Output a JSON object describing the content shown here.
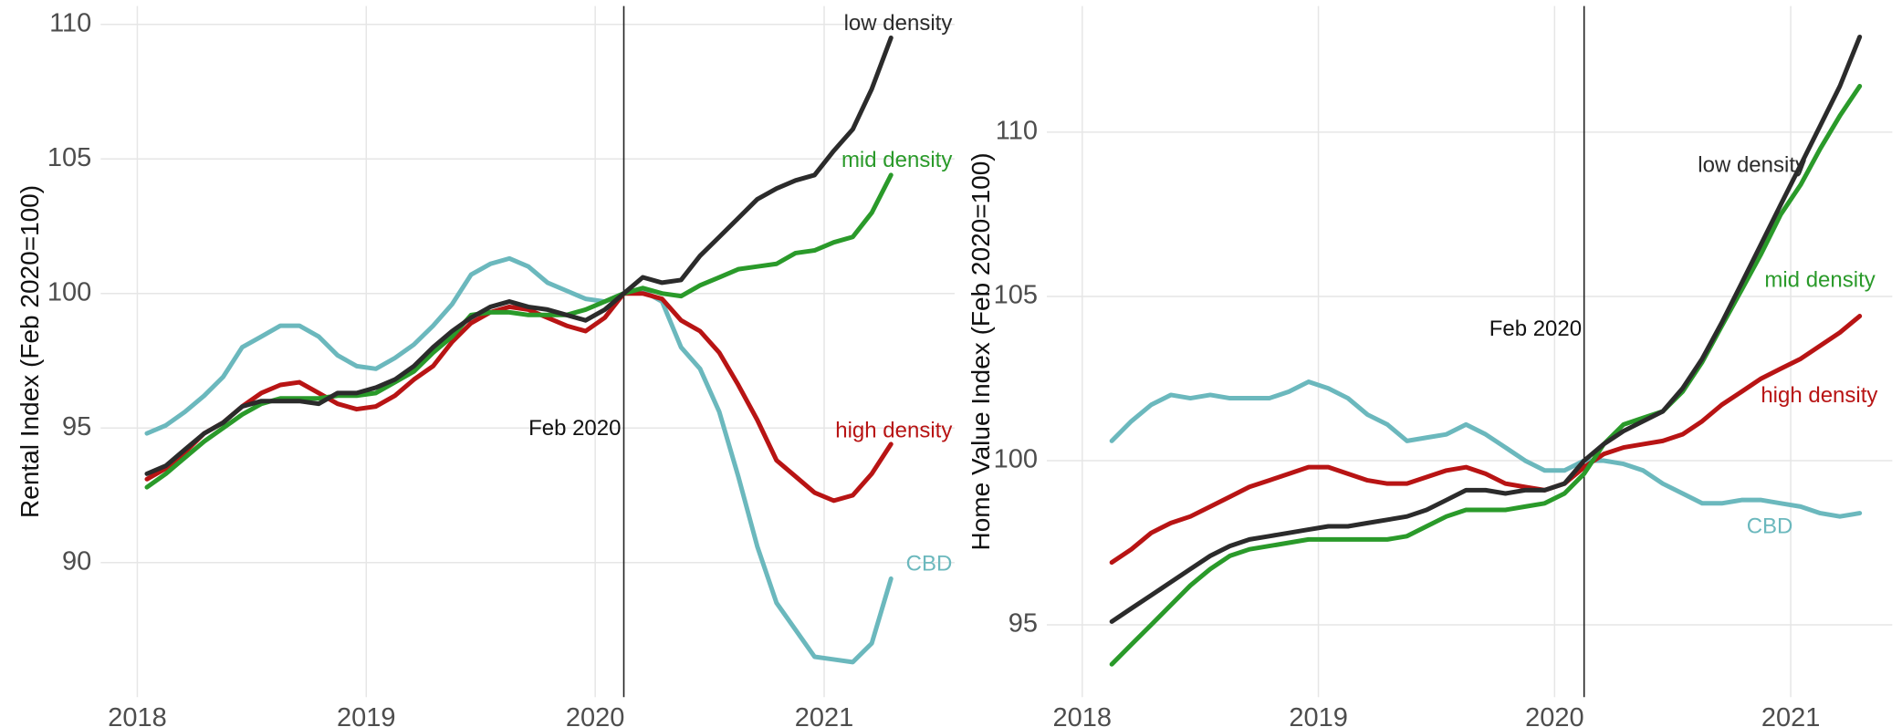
{
  "chart_data": [
    {
      "type": "line",
      "y_label": "Rental Index (Feb 2020=100)",
      "x": [
        2018.042,
        2018.125,
        2018.208,
        2018.292,
        2018.375,
        2018.458,
        2018.542,
        2018.625,
        2018.708,
        2018.792,
        2018.875,
        2018.958,
        2019.042,
        2019.125,
        2019.208,
        2019.292,
        2019.375,
        2019.458,
        2019.542,
        2019.625,
        2019.708,
        2019.792,
        2019.875,
        2019.958,
        2020.042,
        2020.125,
        2020.208,
        2020.292,
        2020.375,
        2020.458,
        2020.542,
        2020.625,
        2020.708,
        2020.792,
        2020.875,
        2020.958,
        2021.042,
        2021.125,
        2021.208,
        2021.292
      ],
      "series": [
        {
          "name": "CBD",
          "color": "#6bb8bd",
          "values": [
            94.8,
            95.1,
            95.6,
            96.2,
            96.9,
            98.0,
            98.4,
            98.8,
            98.8,
            98.4,
            97.7,
            97.3,
            97.2,
            97.6,
            98.1,
            98.8,
            99.6,
            100.7,
            101.1,
            101.3,
            101.0,
            100.4,
            100.1,
            99.8,
            99.7,
            100.0,
            100.1,
            99.7,
            98.0,
            97.2,
            95.6,
            93.2,
            90.6,
            88.5,
            87.5,
            86.5,
            86.4,
            86.3,
            87.0,
            89.4
          ]
        },
        {
          "name": "high density",
          "color": "#b81414",
          "values": [
            93.1,
            93.5,
            94.1,
            94.8,
            95.2,
            95.8,
            96.3,
            96.6,
            96.7,
            96.3,
            95.9,
            95.7,
            95.8,
            96.2,
            96.8,
            97.3,
            98.2,
            98.9,
            99.3,
            99.5,
            99.4,
            99.1,
            98.8,
            98.6,
            99.1,
            100.0,
            100.0,
            99.8,
            99.0,
            98.6,
            97.8,
            96.6,
            95.3,
            93.8,
            93.2,
            92.6,
            92.3,
            92.5,
            93.3,
            94.4
          ]
        },
        {
          "name": "mid density",
          "color": "#2a9a2a",
          "values": [
            92.8,
            93.3,
            93.9,
            94.5,
            95.0,
            95.5,
            95.9,
            96.1,
            96.1,
            96.1,
            96.2,
            96.2,
            96.3,
            96.7,
            97.1,
            97.8,
            98.4,
            99.2,
            99.3,
            99.3,
            99.2,
            99.2,
            99.2,
            99.4,
            99.7,
            100.0,
            100.2,
            100.0,
            99.9,
            100.3,
            100.6,
            100.9,
            101.0,
            101.1,
            101.5,
            101.6,
            101.9,
            102.1,
            103.0,
            104.4
          ]
        },
        {
          "name": "low density",
          "color": "#2b2b2b",
          "values": [
            93.3,
            93.6,
            94.2,
            94.8,
            95.2,
            95.8,
            96.0,
            96.0,
            96.0,
            95.9,
            96.3,
            96.3,
            96.5,
            96.8,
            97.3,
            98.0,
            98.6,
            99.1,
            99.5,
            99.7,
            99.5,
            99.4,
            99.2,
            99.0,
            99.4,
            100.0,
            100.6,
            100.4,
            100.5,
            101.4,
            102.1,
            102.8,
            103.5,
            103.9,
            104.2,
            104.4,
            105.3,
            106.1,
            107.6,
            109.5
          ]
        }
      ],
      "xlim": [
        2017.84,
        2021.57
      ],
      "xticks": [
        2018,
        2019,
        2020,
        2021
      ],
      "ylim": [
        85.0,
        110.68
      ],
      "yticks": [
        90,
        95,
        100,
        105,
        110
      ],
      "grid": true,
      "vline": {
        "x": 2020.125,
        "label": "Feb 2020"
      }
    },
    {
      "type": "line",
      "y_label": "Home Value Index (Feb 2020=100)",
      "x": [
        2018.125,
        2018.208,
        2018.292,
        2018.375,
        2018.458,
        2018.542,
        2018.625,
        2018.708,
        2018.792,
        2018.875,
        2018.958,
        2019.042,
        2019.125,
        2019.208,
        2019.292,
        2019.375,
        2019.458,
        2019.542,
        2019.625,
        2019.708,
        2019.792,
        2019.875,
        2019.958,
        2020.042,
        2020.125,
        2020.208,
        2020.292,
        2020.375,
        2020.458,
        2020.542,
        2020.625,
        2020.708,
        2020.792,
        2020.875,
        2020.958,
        2021.042,
        2021.125,
        2021.208,
        2021.292
      ],
      "series": [
        {
          "name": "CBD",
          "color": "#6bb8bd",
          "values": [
            100.6,
            101.2,
            101.7,
            102.0,
            101.9,
            102.0,
            101.9,
            101.9,
            101.9,
            102.1,
            102.4,
            102.2,
            101.9,
            101.4,
            101.1,
            100.6,
            100.7,
            100.8,
            101.1,
            100.8,
            100.4,
            100.0,
            99.7,
            99.7,
            100.0,
            100.0,
            99.9,
            99.7,
            99.3,
            99.0,
            98.7,
            98.7,
            98.8,
            98.8,
            98.7,
            98.6,
            98.4,
            98.3,
            98.4
          ]
        },
        {
          "name": "high density",
          "color": "#b81414",
          "values": [
            96.9,
            97.3,
            97.8,
            98.1,
            98.3,
            98.6,
            98.9,
            99.2,
            99.4,
            99.6,
            99.8,
            99.8,
            99.6,
            99.4,
            99.3,
            99.3,
            99.5,
            99.7,
            99.8,
            99.6,
            99.3,
            99.2,
            99.1,
            99.3,
            99.8,
            100.2,
            100.4,
            100.5,
            100.6,
            100.8,
            101.2,
            101.7,
            102.1,
            102.5,
            102.8,
            103.1,
            103.5,
            103.9,
            104.4
          ]
        },
        {
          "name": "mid density",
          "color": "#2a9a2a",
          "values": [
            93.8,
            94.4,
            95.0,
            95.6,
            96.2,
            96.7,
            97.1,
            97.3,
            97.4,
            97.5,
            97.6,
            97.6,
            97.6,
            97.6,
            97.6,
            97.7,
            98.0,
            98.3,
            98.5,
            98.5,
            98.5,
            98.6,
            98.7,
            99.0,
            99.6,
            100.5,
            101.1,
            101.3,
            101.5,
            102.1,
            103.0,
            104.1,
            105.2,
            106.3,
            107.5,
            108.4,
            109.5,
            110.5,
            111.4
          ]
        },
        {
          "name": "low density",
          "color": "#2b2b2b",
          "values": [
            95.1,
            95.5,
            95.9,
            96.3,
            96.7,
            97.1,
            97.4,
            97.6,
            97.7,
            97.8,
            97.9,
            98.0,
            98.0,
            98.1,
            98.2,
            98.3,
            98.5,
            98.8,
            99.1,
            99.1,
            99.0,
            99.1,
            99.1,
            99.3,
            100.0,
            100.5,
            100.9,
            101.2,
            101.5,
            102.2,
            103.1,
            104.2,
            105.4,
            106.6,
            107.8,
            109.0,
            110.2,
            111.4,
            112.9
          ]
        }
      ],
      "xlim": [
        2017.85,
        2021.43
      ],
      "xticks": [
        2018,
        2019,
        2020,
        2021
      ],
      "ylim": [
        92.8,
        113.84
      ],
      "yticks": [
        95,
        100,
        105,
        110
      ],
      "grid": true,
      "vline": {
        "x": 2020.125,
        "label": "Feb 2020"
      }
    }
  ]
}
